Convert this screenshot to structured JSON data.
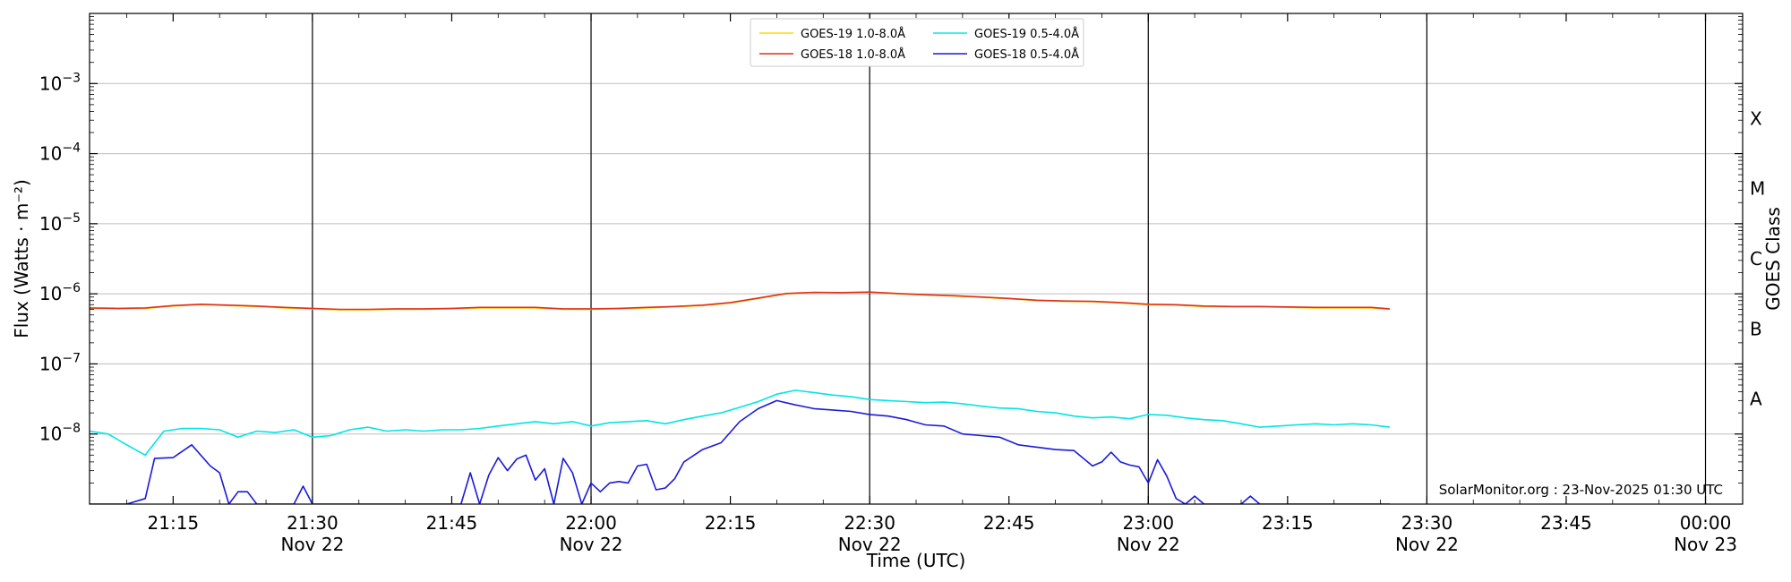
{
  "chart_data": {
    "type": "line",
    "title": "",
    "xlabel": "Time (UTC)",
    "ylabel": "Flux (Watts · m⁻²)",
    "ylabel_right": "GOES Class",
    "yscale": "log",
    "ylim": [
      1e-09,
      0.01
    ],
    "xlim": [
      "2025-11-22 21:06",
      "2025-11-23 00:04"
    ],
    "grid": "horizontal",
    "legend_position": "top-center",
    "credit": "SolarMonitor.org : 23-Nov-2025 01:30 UTC",
    "y_ticks": [
      {
        "value": 0.001,
        "base": "10",
        "exp": "−3"
      },
      {
        "value": 0.0001,
        "base": "10",
        "exp": "−4"
      },
      {
        "value": 1e-05,
        "base": "10",
        "exp": "−5"
      },
      {
        "value": 1e-06,
        "base": "10",
        "exp": "−6"
      },
      {
        "value": 1e-07,
        "base": "10",
        "exp": "−7"
      },
      {
        "value": 1e-08,
        "base": "10",
        "exp": "−8"
      }
    ],
    "x_ticks": [
      {
        "time": "2025-11-22 21:15",
        "label": "21:15",
        "sublabel": ""
      },
      {
        "time": "2025-11-22 21:30",
        "label": "21:30",
        "sublabel": "Nov 22"
      },
      {
        "time": "2025-11-22 21:45",
        "label": "21:45",
        "sublabel": ""
      },
      {
        "time": "2025-11-22 22:00",
        "label": "22:00",
        "sublabel": "Nov 22"
      },
      {
        "time": "2025-11-22 22:15",
        "label": "22:15",
        "sublabel": ""
      },
      {
        "time": "2025-11-22 22:30",
        "label": "22:30",
        "sublabel": "Nov 22"
      },
      {
        "time": "2025-11-22 22:45",
        "label": "22:45",
        "sublabel": ""
      },
      {
        "time": "2025-11-22 23:00",
        "label": "23:00",
        "sublabel": "Nov 22"
      },
      {
        "time": "2025-11-22 23:15",
        "label": "23:15",
        "sublabel": ""
      },
      {
        "time": "2025-11-22 23:30",
        "label": "23:30",
        "sublabel": "Nov 22"
      },
      {
        "time": "2025-11-22 23:45",
        "label": "23:45",
        "sublabel": ""
      },
      {
        "time": "2025-11-23 00:00",
        "label": "00:00",
        "sublabel": "Nov 23"
      }
    ],
    "vlines": [
      "2025-11-22 21:30",
      "2025-11-22 22:00",
      "2025-11-22 22:30",
      "2025-11-22 23:00",
      "2025-11-22 23:30",
      "2025-11-23 00:00"
    ],
    "goes_classes": [
      {
        "label": "X",
        "value": 0.000316
      },
      {
        "label": "M",
        "value": 3.16e-05
      },
      {
        "label": "C",
        "value": 3.16e-06
      },
      {
        "label": "B",
        "value": 3.16e-07
      },
      {
        "label": "A",
        "value": 3.16e-08
      }
    ],
    "series": [
      {
        "name": "GOES-19 1.0-8.0Å",
        "color": "#ffd700",
        "x": [
          "2025-11-22 21:06",
          "2025-11-22 21:09",
          "2025-11-22 21:12",
          "2025-11-22 21:15",
          "2025-11-22 21:18",
          "2025-11-22 21:21",
          "2025-11-22 21:24",
          "2025-11-22 21:27",
          "2025-11-22 21:30",
          "2025-11-22 21:33",
          "2025-11-22 21:36",
          "2025-11-22 21:39",
          "2025-11-22 21:42",
          "2025-11-22 21:45",
          "2025-11-22 21:48",
          "2025-11-22 21:51",
          "2025-11-22 21:54",
          "2025-11-22 21:57",
          "2025-11-22 22:00",
          "2025-11-22 22:03",
          "2025-11-22 22:06",
          "2025-11-22 22:09",
          "2025-11-22 22:12",
          "2025-11-22 22:15",
          "2025-11-22 22:18",
          "2025-11-22 22:21",
          "2025-11-22 22:24",
          "2025-11-22 22:27",
          "2025-11-22 22:30",
          "2025-11-22 22:33",
          "2025-11-22 22:36",
          "2025-11-22 22:39",
          "2025-11-22 22:42",
          "2025-11-22 22:45",
          "2025-11-22 22:48",
          "2025-11-22 22:51",
          "2025-11-22 22:54",
          "2025-11-22 22:57",
          "2025-11-22 23:00",
          "2025-11-22 23:03",
          "2025-11-22 23:06",
          "2025-11-22 23:09",
          "2025-11-22 23:12",
          "2025-11-22 23:15",
          "2025-11-22 23:18",
          "2025-11-22 23:21",
          "2025-11-22 23:24",
          "2025-11-22 23:26"
        ],
        "values": [
          6.2e-07,
          6.1e-07,
          6.2e-07,
          6.7e-07,
          7e-07,
          6.8e-07,
          6.6e-07,
          6.3e-07,
          6.1e-07,
          5.9e-07,
          5.9e-07,
          6e-07,
          6e-07,
          6.1e-07,
          6.3e-07,
          6.3e-07,
          6.3e-07,
          6e-07,
          6e-07,
          6.1e-07,
          6.3e-07,
          6.5e-07,
          6.8e-07,
          7.4e-07,
          8.6e-07,
          1e-06,
          1.04e-06,
          1.03e-06,
          1.05e-06,
          1e-06,
          9.6e-07,
          9.3e-07,
          8.9e-07,
          8.5e-07,
          8e-07,
          7.8e-07,
          7.7e-07,
          7.4e-07,
          7e-07,
          6.9e-07,
          6.6e-07,
          6.5e-07,
          6.5e-07,
          6.4e-07,
          6.3e-07,
          6.3e-07,
          6.3e-07,
          6e-07
        ]
      },
      {
        "name": "GOES-18 1.0-8.0Å",
        "color": "#e0301e",
        "x": [
          "2025-11-22 21:06",
          "2025-11-22 21:09",
          "2025-11-22 21:12",
          "2025-11-22 21:15",
          "2025-11-22 21:18",
          "2025-11-22 21:21",
          "2025-11-22 21:24",
          "2025-11-22 21:27",
          "2025-11-22 21:30",
          "2025-11-22 21:33",
          "2025-11-22 21:36",
          "2025-11-22 21:39",
          "2025-11-22 21:42",
          "2025-11-22 21:45",
          "2025-11-22 21:48",
          "2025-11-22 21:51",
          "2025-11-22 21:54",
          "2025-11-22 21:57",
          "2025-11-22 22:00",
          "2025-11-22 22:03",
          "2025-11-22 22:06",
          "2025-11-22 22:09",
          "2025-11-22 22:12",
          "2025-11-22 22:15",
          "2025-11-22 22:18",
          "2025-11-22 22:21",
          "2025-11-22 22:24",
          "2025-11-22 22:27",
          "2025-11-22 22:30",
          "2025-11-22 22:33",
          "2025-11-22 22:36",
          "2025-11-22 22:39",
          "2025-11-22 22:42",
          "2025-11-22 22:45",
          "2025-11-22 22:48",
          "2025-11-22 22:51",
          "2025-11-22 22:54",
          "2025-11-22 22:57",
          "2025-11-22 23:00",
          "2025-11-22 23:03",
          "2025-11-22 23:06",
          "2025-11-22 23:09",
          "2025-11-22 23:12",
          "2025-11-22 23:15",
          "2025-11-22 23:18",
          "2025-11-22 23:21",
          "2025-11-22 23:24",
          "2025-11-22 23:26"
        ],
        "values": [
          6.3e-07,
          6.2e-07,
          6.3e-07,
          6.8e-07,
          7.1e-07,
          6.9e-07,
          6.7e-07,
          6.4e-07,
          6.2e-07,
          6e-07,
          6e-07,
          6.1e-07,
          6.1e-07,
          6.2e-07,
          6.4e-07,
          6.4e-07,
          6.4e-07,
          6.1e-07,
          6.1e-07,
          6.2e-07,
          6.4e-07,
          6.6e-07,
          6.9e-07,
          7.5e-07,
          8.7e-07,
          1.01e-06,
          1.05e-06,
          1.04e-06,
          1.06e-06,
          1.01e-06,
          9.7e-07,
          9.4e-07,
          9e-07,
          8.6e-07,
          8.1e-07,
          7.9e-07,
          7.8e-07,
          7.5e-07,
          7.1e-07,
          7e-07,
          6.7e-07,
          6.6e-07,
          6.6e-07,
          6.5e-07,
          6.4e-07,
          6.4e-07,
          6.4e-07,
          6.1e-07
        ]
      },
      {
        "name": "GOES-19 0.5-4.0Å",
        "color": "#00e5e5",
        "x": [
          "2025-11-22 21:06",
          "2025-11-22 21:08",
          "2025-11-22 21:10",
          "2025-11-22 21:12",
          "2025-11-22 21:14",
          "2025-11-22 21:16",
          "2025-11-22 21:18",
          "2025-11-22 21:20",
          "2025-11-22 21:22",
          "2025-11-22 21:24",
          "2025-11-22 21:26",
          "2025-11-22 21:28",
          "2025-11-22 21:30",
          "2025-11-22 21:32",
          "2025-11-22 21:34",
          "2025-11-22 21:36",
          "2025-11-22 21:38",
          "2025-11-22 21:40",
          "2025-11-22 21:42",
          "2025-11-22 21:44",
          "2025-11-22 21:46",
          "2025-11-22 21:48",
          "2025-11-22 21:50",
          "2025-11-22 21:52",
          "2025-11-22 21:54",
          "2025-11-22 21:56",
          "2025-11-22 21:58",
          "2025-11-22 22:00",
          "2025-11-22 22:02",
          "2025-11-22 22:04",
          "2025-11-22 22:06",
          "2025-11-22 22:08",
          "2025-11-22 22:10",
          "2025-11-22 22:12",
          "2025-11-22 22:14",
          "2025-11-22 22:16",
          "2025-11-22 22:18",
          "2025-11-22 22:20",
          "2025-11-22 22:22",
          "2025-11-22 22:24",
          "2025-11-22 22:26",
          "2025-11-22 22:28",
          "2025-11-22 22:30",
          "2025-11-22 22:32",
          "2025-11-22 22:34",
          "2025-11-22 22:36",
          "2025-11-22 22:38",
          "2025-11-22 22:40",
          "2025-11-22 22:42",
          "2025-11-22 22:44",
          "2025-11-22 22:46",
          "2025-11-22 22:48",
          "2025-11-22 22:50",
          "2025-11-22 22:52",
          "2025-11-22 22:54",
          "2025-11-22 22:56",
          "2025-11-22 22:58",
          "2025-11-22 23:00",
          "2025-11-22 23:02",
          "2025-11-22 23:04",
          "2025-11-22 23:06",
          "2025-11-22 23:08",
          "2025-11-22 23:10",
          "2025-11-22 23:12",
          "2025-11-22 23:14",
          "2025-11-22 23:16",
          "2025-11-22 23:18",
          "2025-11-22 23:20",
          "2025-11-22 23:22",
          "2025-11-22 23:24",
          "2025-11-22 23:26"
        ],
        "values": [
          1.1e-08,
          1e-08,
          7e-09,
          5e-09,
          1.1e-08,
          1.2e-08,
          1.2e-08,
          1.15e-08,
          9e-09,
          1.1e-08,
          1.05e-08,
          1.15e-08,
          9e-09,
          9.5e-09,
          1.15e-08,
          1.25e-08,
          1.1e-08,
          1.15e-08,
          1.1e-08,
          1.15e-08,
          1.15e-08,
          1.2e-08,
          1.3e-08,
          1.4e-08,
          1.5e-08,
          1.4e-08,
          1.5e-08,
          1.3e-08,
          1.45e-08,
          1.5e-08,
          1.55e-08,
          1.4e-08,
          1.6e-08,
          1.8e-08,
          2e-08,
          2.4e-08,
          2.9e-08,
          3.7e-08,
          4.2e-08,
          3.9e-08,
          3.6e-08,
          3.4e-08,
          3.1e-08,
          3e-08,
          2.9e-08,
          2.8e-08,
          2.85e-08,
          2.7e-08,
          2.5e-08,
          2.35e-08,
          2.3e-08,
          2.1e-08,
          2e-08,
          1.8e-08,
          1.7e-08,
          1.75e-08,
          1.65e-08,
          1.9e-08,
          1.85e-08,
          1.7e-08,
          1.6e-08,
          1.55e-08,
          1.4e-08,
          1.25e-08,
          1.3e-08,
          1.35e-08,
          1.4e-08,
          1.35e-08,
          1.4e-08,
          1.35e-08,
          1.25e-08
        ]
      },
      {
        "name": "GOES-18 0.5-4.0Å",
        "color": "#1a1adc",
        "x": [
          "2025-11-22 21:06",
          "2025-11-22 21:08",
          "2025-11-22 21:10",
          "2025-11-22 21:12",
          "2025-11-22 21:13",
          "2025-11-22 21:15",
          "2025-11-22 21:17",
          "2025-11-22 21:19",
          "2025-11-22 21:20",
          "2025-11-22 21:21",
          "2025-11-22 21:22",
          "2025-11-22 21:23",
          "2025-11-22 21:24",
          "2025-11-22 21:26",
          "2025-11-22 21:28",
          "2025-11-22 21:29",
          "2025-11-22 21:30",
          "2025-11-22 21:40",
          "2025-11-22 21:46",
          "2025-11-22 21:47",
          "2025-11-22 21:48",
          "2025-11-22 21:49",
          "2025-11-22 21:50",
          "2025-11-22 21:51",
          "2025-11-22 21:52",
          "2025-11-22 21:53",
          "2025-11-22 21:54",
          "2025-11-22 21:55",
          "2025-11-22 21:56",
          "2025-11-22 21:57",
          "2025-11-22 21:58",
          "2025-11-22 21:59",
          "2025-11-22 22:00",
          "2025-11-22 22:01",
          "2025-11-22 22:02",
          "2025-11-22 22:03",
          "2025-11-22 22:04",
          "2025-11-22 22:05",
          "2025-11-22 22:06",
          "2025-11-22 22:07",
          "2025-11-22 22:08",
          "2025-11-22 22:09",
          "2025-11-22 22:10",
          "2025-11-22 22:12",
          "2025-11-22 22:14",
          "2025-11-22 22:16",
          "2025-11-22 22:18",
          "2025-11-22 22:20",
          "2025-11-22 22:22",
          "2025-11-22 22:24",
          "2025-11-22 22:26",
          "2025-11-22 22:28",
          "2025-11-22 22:30",
          "2025-11-22 22:32",
          "2025-11-22 22:34",
          "2025-11-22 22:36",
          "2025-11-22 22:38",
          "2025-11-22 22:40",
          "2025-11-22 22:42",
          "2025-11-22 22:44",
          "2025-11-22 22:46",
          "2025-11-22 22:48",
          "2025-11-22 22:50",
          "2025-11-22 22:52",
          "2025-11-22 22:54",
          "2025-11-22 22:55",
          "2025-11-22 22:56",
          "2025-11-22 22:57",
          "2025-11-22 22:58",
          "2025-11-22 22:59",
          "2025-11-22 23:00",
          "2025-11-22 23:01",
          "2025-11-22 23:02",
          "2025-11-22 23:03",
          "2025-11-22 23:04",
          "2025-11-22 23:05",
          "2025-11-22 23:06",
          "2025-11-22 23:07",
          "2025-11-22 23:08",
          "2025-11-22 23:09",
          "2025-11-22 23:10",
          "2025-11-22 23:11",
          "2025-11-22 23:12",
          "2025-11-22 23:26"
        ],
        "values": [
          1e-09,
          1e-09,
          1e-09,
          1.2e-09,
          4.5e-09,
          4.6e-09,
          7e-09,
          3.5e-09,
          2.8e-09,
          1e-09,
          1.5e-09,
          1.5e-09,
          1e-09,
          1e-09,
          1e-09,
          1.8e-09,
          1e-09,
          1e-09,
          1e-09,
          2.8e-09,
          1e-09,
          2.6e-09,
          4.6e-09,
          3e-09,
          4.4e-09,
          5e-09,
          2.2e-09,
          3.2e-09,
          1e-09,
          4.5e-09,
          2.8e-09,
          1e-09,
          2e-09,
          1.5e-09,
          2e-09,
          2.1e-09,
          2e-09,
          3.5e-09,
          3.7e-09,
          1.6e-09,
          1.7e-09,
          2.3e-09,
          4e-09,
          6e-09,
          7.5e-09,
          1.5e-08,
          2.3e-08,
          3e-08,
          2.6e-08,
          2.3e-08,
          2.2e-08,
          2.1e-08,
          1.9e-08,
          1.8e-08,
          1.6e-08,
          1.35e-08,
          1.3e-08,
          1e-08,
          9.5e-09,
          9e-09,
          7e-09,
          6.5e-09,
          6e-09,
          5.8e-09,
          3.5e-09,
          4e-09,
          5.5e-09,
          4e-09,
          3.6e-09,
          3.4e-09,
          2e-09,
          4.3e-09,
          2.5e-09,
          1.2e-09,
          1e-09,
          1.3e-09,
          1e-09,
          1e-09,
          1e-09,
          1e-09,
          1e-09,
          1.3e-09,
          1e-09,
          1e-09
        ]
      }
    ]
  }
}
